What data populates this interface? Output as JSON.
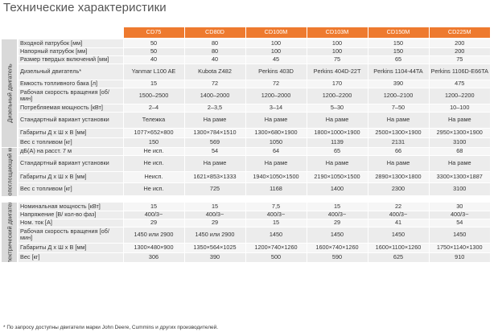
{
  "title": "Технические характеристики",
  "models": [
    "CD75",
    "CD80D",
    "CD100M",
    "CD103M",
    "CD150M",
    "CD225M"
  ],
  "groups": [
    {
      "name": "Дизельный двигатель",
      "rows": [
        {
          "label": "Входной патрубок [мм]",
          "values": [
            "50",
            "80",
            "100",
            "100",
            "150",
            "200"
          ]
        },
        {
          "label": "Напорный патрубок [мм]",
          "values": [
            "50",
            "80",
            "100",
            "100",
            "150",
            "200"
          ]
        },
        {
          "label": "Размер твердых включений [мм]",
          "values": [
            "40",
            "40",
            "45",
            "75",
            "65",
            "75"
          ]
        },
        {
          "label": "Дизельный двигатель*",
          "values": [
            "Yanmar L100 AE",
            "Kubota Z482",
            "Perkins 403D",
            "Perkins 404D-22T",
            "Perkins 1104-44TA",
            "Perkins 1106D-E66TA"
          ]
        },
        {
          "label": "Емкость топливного бака [л]",
          "values": [
            "15",
            "72",
            "72",
            "170",
            "390",
            "475"
          ]
        },
        {
          "label": "Рабочая скорость вращения [об/мин]",
          "values": [
            "1500–2500",
            "1400–2000",
            "1200–2000",
            "1200–2200",
            "1200–2100",
            "1200–2200"
          ]
        },
        {
          "label": "Потребляемая мощность [кВт]",
          "values": [
            "2–4",
            "2–3,5",
            "3–14",
            "5–30",
            "7–50",
            "10–100"
          ]
        },
        {
          "label": "Стандартный вариант установки",
          "values": [
            "Тележка",
            "На раме",
            "На раме",
            "На раме",
            "На раме",
            "На раме"
          ]
        },
        {
          "label": "Габариты Д x Ш x В [мм]",
          "values": [
            "1077×652×800",
            "1300×784×1510",
            "1300×680×1900",
            "1800×1000×1900",
            "2500×1300×1900",
            "2950×1300×1900"
          ]
        },
        {
          "label": "Вес с топливом [кг]",
          "values": [
            "150",
            "569",
            "1050",
            "1139",
            "2131",
            "3100"
          ]
        }
      ]
    },
    {
      "name": "Шумопоглощающий кожух",
      "rows": [
        {
          "label": "дБ(А) на расст. 7 м",
          "values": [
            "Не исп.",
            "54",
            "64",
            "65",
            "66",
            "68"
          ]
        },
        {
          "label": "Стандартный вариант установки",
          "values": [
            "Не исп.",
            "На раме",
            "На раме",
            "На раме",
            "На раме",
            "На раме"
          ]
        },
        {
          "label": "Габариты Д x Ш x В [мм]",
          "values": [
            "Неисп.",
            "1621×853×1333",
            "1940×1050×1500",
            "2190×1050×1500",
            "2890×1300×1800",
            "3300×1300×1887"
          ]
        },
        {
          "label": "Вес с топливом [кг]",
          "values": [
            "Не исп.",
            "725",
            "1168",
            "1400",
            "2300",
            "3100"
          ]
        }
      ]
    },
    {
      "name": "Электрический двигатель",
      "rows": [
        {
          "label": "Номинальная мощность [кВт]",
          "values": [
            "15",
            "15",
            "7,5",
            "15",
            "22",
            "30"
          ]
        },
        {
          "label": "Напряжение [В/ кол-во фаз]",
          "values": [
            "400/3~",
            "400/3~",
            "400/3~",
            "400/3~",
            "400/3~",
            "400/3~"
          ]
        },
        {
          "label": "Ном. ток [А]",
          "values": [
            "29",
            "29",
            "15",
            "29",
            "41",
            "54"
          ]
        },
        {
          "label": "Рабочая скорость вращения [об/мин]",
          "values": [
            "1450 или 2900",
            "1450 или 2900",
            "1450",
            "1450",
            "1450",
            "1450"
          ]
        },
        {
          "label": "Габариты Д x Ш x В [мм]",
          "values": [
            "1300×480×900",
            "1350×564×1025",
            "1200×740×1260",
            "1600×740×1260",
            "1600×1100×1260",
            "1750×1140×1300"
          ]
        },
        {
          "label": "Вес [кг]",
          "values": [
            "306",
            "390",
            "500",
            "590",
            "625",
            "910"
          ]
        }
      ]
    }
  ],
  "footnote": "* По запросу доступны двигатели марки John Deere, Cummins и других производителей."
}
